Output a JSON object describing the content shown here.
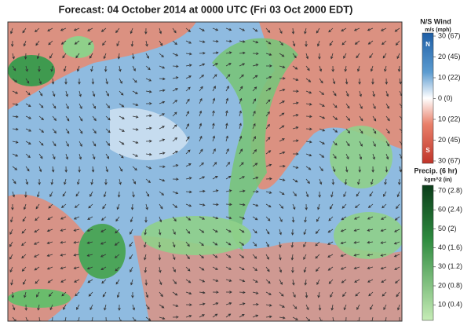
{
  "title": "Forecast: 04 October 2014 at 0000 UTC (Fri 03 Oct 2000 EDT)",
  "wind_legend": {
    "title": "N/S Wind",
    "units": "m/s (mph)",
    "top_label": "N",
    "bottom_label": "S",
    "ticks": [
      "30 (67)",
      "20 (45)",
      "10 (22)",
      "0 (0)",
      "10 (22)",
      "20 (45)",
      "30 (67)"
    ]
  },
  "precip_legend": {
    "title": "Precip. (6 hr)",
    "units": "kgm^2 (in)",
    "ticks": [
      "70 (2.8)",
      "60 (2.4)",
      "50 (2)",
      "40 (1.6)",
      "30 (1.2)",
      "20 (0.8)",
      "10 (0.4)"
    ]
  }
}
